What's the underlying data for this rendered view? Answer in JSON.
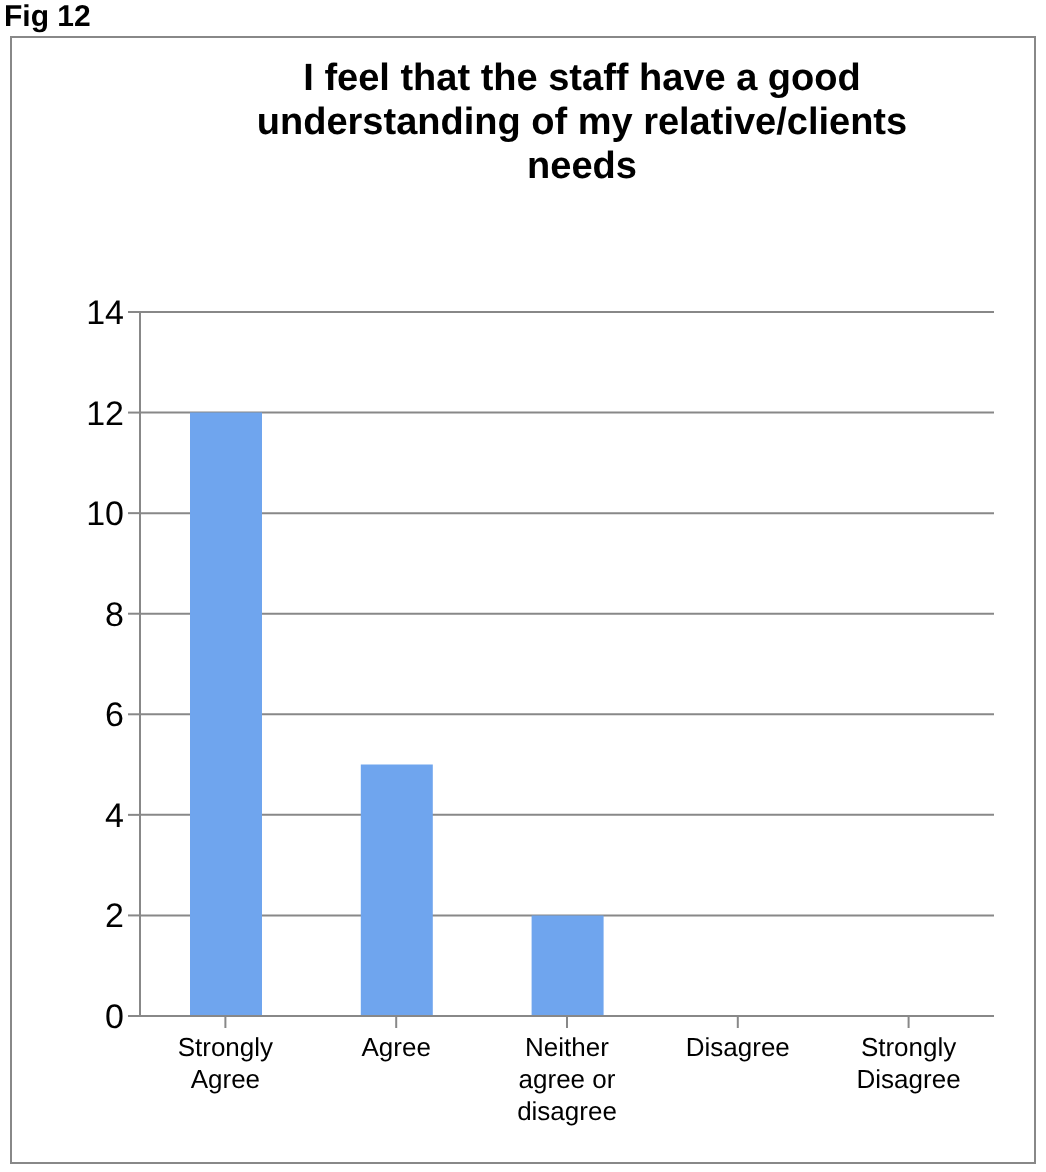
{
  "chart_data": {
    "type": "bar",
    "title": "I feel that the staff have a good understanding of my relative/clients needs",
    "annotations": [
      "Fig 12"
    ],
    "categories": [
      "Strongly Agree",
      "Agree",
      "Neither agree or disagree",
      "Disagree",
      "Strongly Disagree"
    ],
    "values": [
      12,
      5,
      2,
      0,
      0
    ],
    "color": "#6fa5ee",
    "ylim": [
      0,
      14
    ],
    "yticks": [
      0,
      2,
      4,
      6,
      8,
      10,
      12,
      14
    ],
    "grid": "y"
  }
}
